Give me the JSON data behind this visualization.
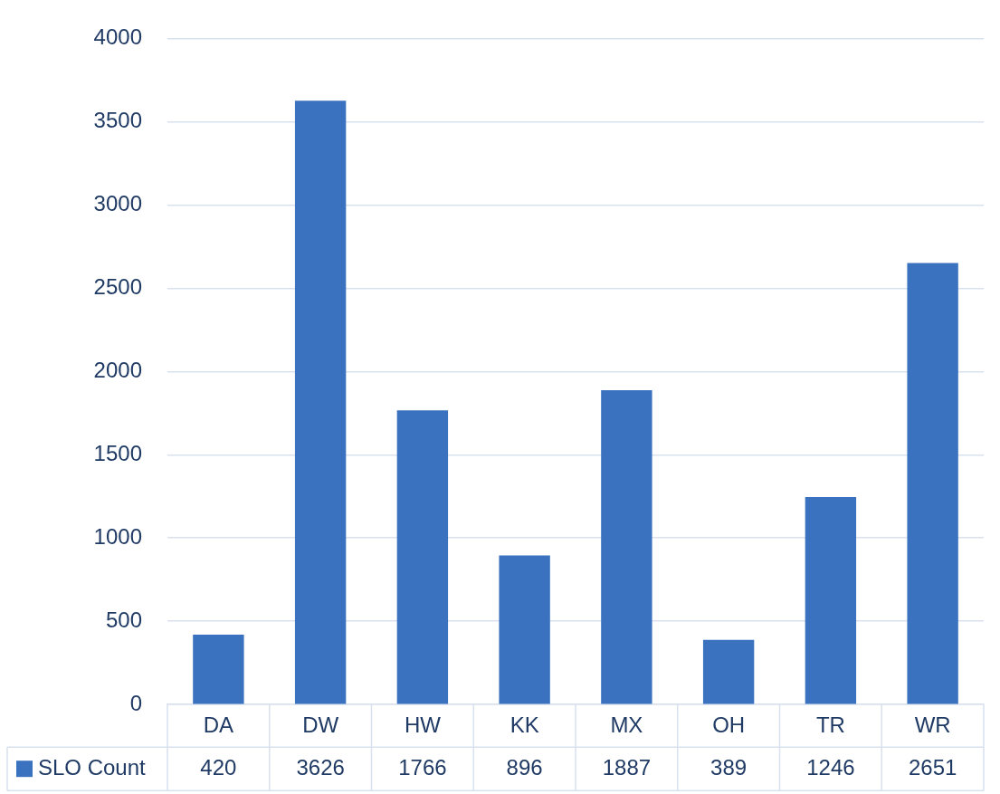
{
  "chart_data": {
    "type": "bar",
    "categories": [
      "DA",
      "DW",
      "HW",
      "KK",
      "MX",
      "OH",
      "TR",
      "WR"
    ],
    "series": [
      {
        "name": "SLO Count",
        "color": "#3a72bf",
        "values": [
          420,
          3626,
          1766,
          896,
          1887,
          389,
          1246,
          2651
        ]
      }
    ],
    "ylim": [
      0,
      4000
    ],
    "yticks": [
      0,
      500,
      1000,
      1500,
      2000,
      2500,
      3000,
      3500,
      4000
    ],
    "grid": "y",
    "data_labels": true,
    "legend": "bottom"
  }
}
